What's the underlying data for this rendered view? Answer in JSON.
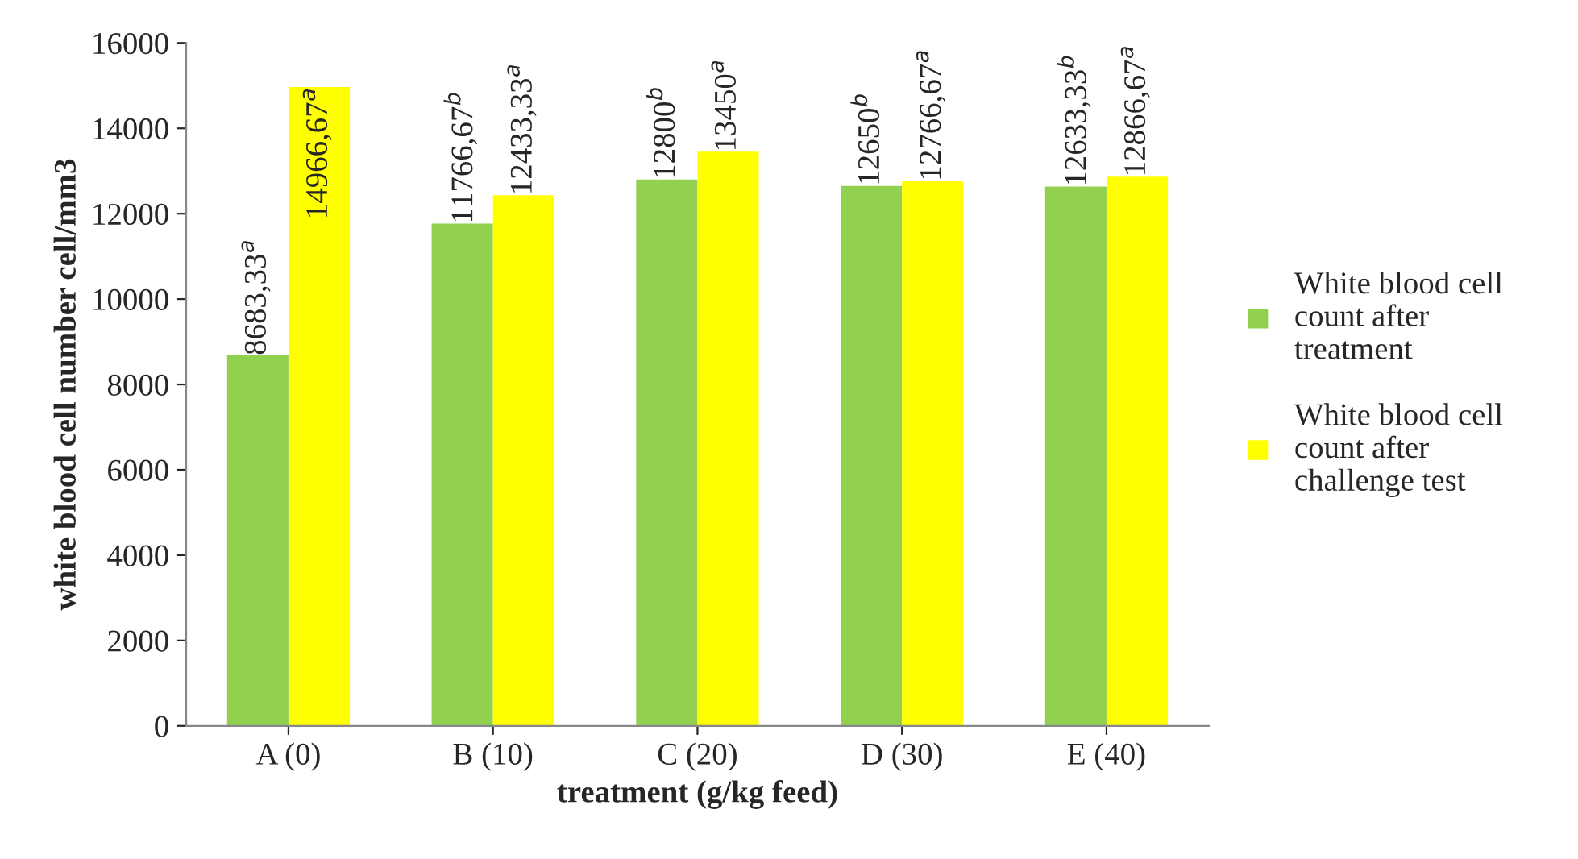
{
  "chart_data": {
    "type": "bar",
    "xlabel": "treatment (g/kg feed)",
    "ylabel": "white blood cell number cell/mm3",
    "categories": [
      "A (0)",
      "B (10)",
      "C (20)",
      "D (30)",
      "E (40)"
    ],
    "series": [
      {
        "name": "White blood cell count after treatment",
        "color": "#92d050",
        "values": [
          8683.33,
          11766.67,
          12800,
          12650,
          12633.33
        ],
        "value_labels": [
          "8683,33$^{a}$",
          "11766,67$^{b}$",
          "12800$^{b}$",
          "12650$^{b}$",
          "12633,33$^{b}$"
        ]
      },
      {
        "name": "White blood cell count after challenge test",
        "color": "#ffff00",
        "values": [
          14966.67,
          12433.33,
          13450,
          12766.67,
          12866.67
        ],
        "value_labels": [
          "14966,67$^{a}$",
          "12433,33$^{a}$",
          "13450$^{a}$",
          "12766,67$^{a}$",
          "12866,67$^{a}$"
        ]
      }
    ],
    "ylim": [
      0,
      16000
    ],
    "yticks": [
      0,
      2000,
      4000,
      6000,
      8000,
      10000,
      12000,
      14000,
      16000
    ],
    "grid": false,
    "legend": "right"
  }
}
